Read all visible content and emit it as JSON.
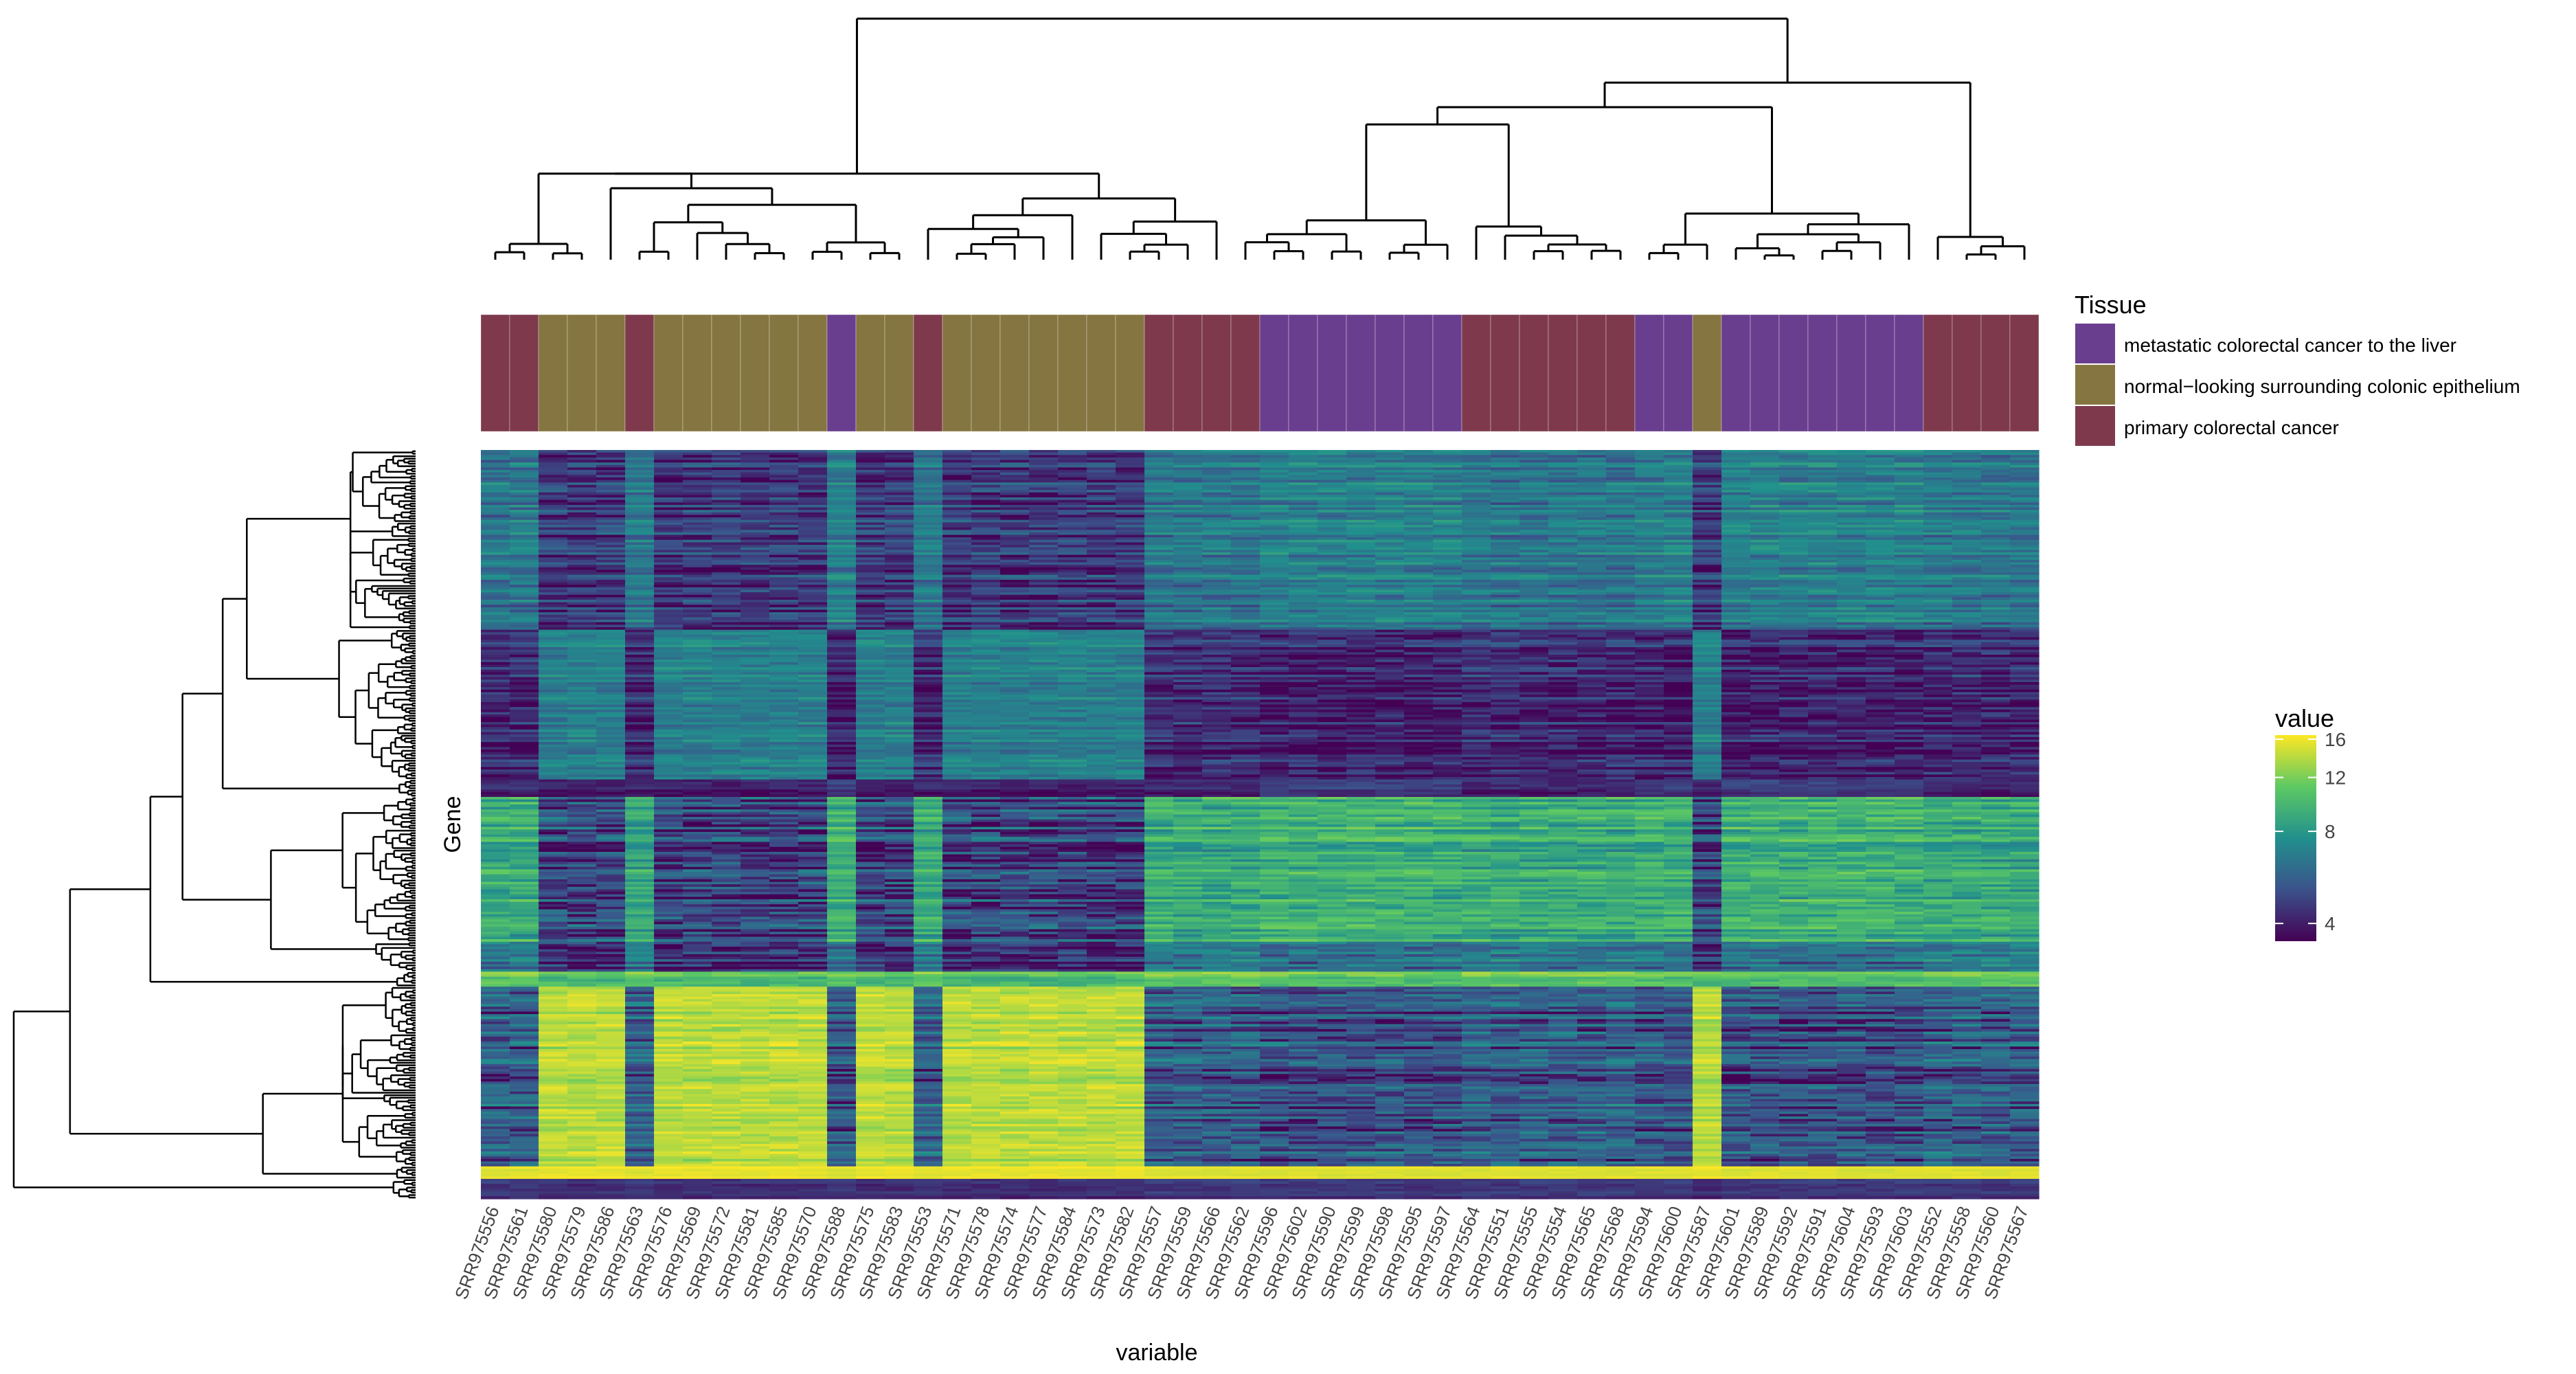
{
  "chart_data": {
    "type": "heatmap",
    "xlabel": "variable",
    "ylabel": "Gene",
    "samples": [
      {
        "id": "SRR975556",
        "tissue": 2
      },
      {
        "id": "SRR975561",
        "tissue": 2
      },
      {
        "id": "SRR975580",
        "tissue": 1
      },
      {
        "id": "SRR975579",
        "tissue": 1
      },
      {
        "id": "SRR975586",
        "tissue": 1
      },
      {
        "id": "SRR975563",
        "tissue": 2
      },
      {
        "id": "SRR975576",
        "tissue": 1
      },
      {
        "id": "SRR975569",
        "tissue": 1
      },
      {
        "id": "SRR975572",
        "tissue": 1
      },
      {
        "id": "SRR975581",
        "tissue": 1
      },
      {
        "id": "SRR975585",
        "tissue": 1
      },
      {
        "id": "SRR975570",
        "tissue": 1
      },
      {
        "id": "SRR975588",
        "tissue": 0
      },
      {
        "id": "SRR975575",
        "tissue": 1
      },
      {
        "id": "SRR975583",
        "tissue": 1
      },
      {
        "id": "SRR975553",
        "tissue": 2
      },
      {
        "id": "SRR975571",
        "tissue": 1
      },
      {
        "id": "SRR975578",
        "tissue": 1
      },
      {
        "id": "SRR975574",
        "tissue": 1
      },
      {
        "id": "SRR975577",
        "tissue": 1
      },
      {
        "id": "SRR975584",
        "tissue": 1
      },
      {
        "id": "SRR975573",
        "tissue": 1
      },
      {
        "id": "SRR975582",
        "tissue": 1
      },
      {
        "id": "SRR975557",
        "tissue": 2
      },
      {
        "id": "SRR975559",
        "tissue": 2
      },
      {
        "id": "SRR975566",
        "tissue": 2
      },
      {
        "id": "SRR975562",
        "tissue": 2
      },
      {
        "id": "SRR975596",
        "tissue": 0
      },
      {
        "id": "SRR975602",
        "tissue": 0
      },
      {
        "id": "SRR975590",
        "tissue": 0
      },
      {
        "id": "SRR975599",
        "tissue": 0
      },
      {
        "id": "SRR975598",
        "tissue": 0
      },
      {
        "id": "SRR975595",
        "tissue": 0
      },
      {
        "id": "SRR975597",
        "tissue": 0
      },
      {
        "id": "SRR975564",
        "tissue": 2
      },
      {
        "id": "SRR975551",
        "tissue": 2
      },
      {
        "id": "SRR975555",
        "tissue": 2
      },
      {
        "id": "SRR975554",
        "tissue": 2
      },
      {
        "id": "SRR975565",
        "tissue": 2
      },
      {
        "id": "SRR975568",
        "tissue": 2
      },
      {
        "id": "SRR975594",
        "tissue": 0
      },
      {
        "id": "SRR975600",
        "tissue": 0
      },
      {
        "id": "SRR975587",
        "tissue": 1
      },
      {
        "id": "SRR975601",
        "tissue": 0
      },
      {
        "id": "SRR975589",
        "tissue": 0
      },
      {
        "id": "SRR975592",
        "tissue": 0
      },
      {
        "id": "SRR975591",
        "tissue": 0
      },
      {
        "id": "SRR975604",
        "tissue": 0
      },
      {
        "id": "SRR975593",
        "tissue": 0
      },
      {
        "id": "SRR975603",
        "tissue": 0
      },
      {
        "id": "SRR975552",
        "tissue": 2
      },
      {
        "id": "SRR975558",
        "tissue": 2
      },
      {
        "id": "SRR975560",
        "tissue": 2
      },
      {
        "id": "SRR975567",
        "tissue": 2
      }
    ],
    "annotation": {
      "title": "Tissue",
      "levels": [
        {
          "label": "metastatic colorectal cancer to the liver",
          "color": "#6A3E8E"
        },
        {
          "label": "normal−looking surrounding colonic epithelium",
          "color": "#857540"
        },
        {
          "label": "primary colorectal cancer",
          "color": "#7E3A4C"
        }
      ]
    },
    "colorbar": {
      "title": "value",
      "range": [
        3.5,
        16.5
      ],
      "ticks": [
        4,
        8,
        12,
        16
      ],
      "scale": "log"
    },
    "gene_count": 300,
    "gene_blocks": [
      {
        "rows": 72,
        "normal": 4.6,
        "metastatic": 6.9,
        "primary": 6.5,
        "noise": 1.2
      },
      {
        "rows": 60,
        "normal": 6.9,
        "metastatic": 4.1,
        "primary": 4.3,
        "noise": 1.0
      },
      {
        "rows": 7,
        "normal": 3.9,
        "metastatic": 4.6,
        "primary": 4.1,
        "noise": 0.5
      },
      {
        "rows": 58,
        "normal": 5.0,
        "metastatic": 9.6,
        "primary": 9.2,
        "noise": 1.8
      },
      {
        "rows": 12,
        "normal": 4.4,
        "metastatic": 6.4,
        "primary": 6.8,
        "noise": 1.5
      },
      {
        "rows": 6,
        "normal": 10.5,
        "metastatic": 11.0,
        "primary": 11.5,
        "noise": 1.5
      },
      {
        "rows": 72,
        "normal": 14.0,
        "metastatic": 5.2,
        "primary": 5.6,
        "noise": 1.6
      },
      {
        "rows": 5,
        "normal": 16.0,
        "metastatic": 15.5,
        "primary": 15.5,
        "noise": 0.6
      },
      {
        "rows": 8,
        "normal": 4.2,
        "metastatic": 4.4,
        "primary": 4.4,
        "noise": 0.4
      }
    ]
  }
}
